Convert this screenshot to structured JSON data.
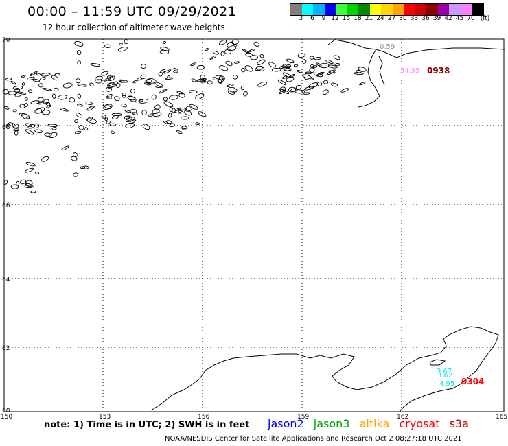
{
  "header": {
    "title": "00:00 – 11:59 UTC 09/29/2021",
    "subtitle": "12 hour collection of altimeter wave heights"
  },
  "legend": {
    "unit": "(ft)",
    "colors": [
      "#7f7f7f",
      "#00ffff",
      "#00b4ff",
      "#0000ff",
      "#40ff40",
      "#00d400",
      "#008800",
      "#ffff00",
      "#ffd700",
      "#ffa500",
      "#ff0000",
      "#cc0000",
      "#8b0000",
      "#9900aa",
      "#cc99ff",
      "#ff80ff",
      "#000000"
    ],
    "ticks": [
      "3",
      "6",
      "9",
      "12",
      "15",
      "18",
      "21",
      "24",
      "27",
      "30",
      "33",
      "36",
      "39",
      "42",
      "45",
      "70"
    ]
  },
  "map": {
    "lon_ticks": [
      "150",
      "153",
      "156",
      "159",
      "162",
      "165"
    ],
    "lat_ticks": [
      "70",
      "68",
      "66",
      "64",
      "62",
      "60"
    ],
    "annotations": [
      {
        "text": "0.59",
        "color": "#909090"
      },
      {
        "text": "54.95",
        "color": "#ff88ff"
      },
      {
        "text": "0938",
        "color": "#8b0000"
      },
      {
        "text": "3.67",
        "color": "#00e5e5"
      },
      {
        "text": "3.62",
        "color": "#00e5e5"
      },
      {
        "text": "4.95",
        "color": "#00e5e5"
      },
      {
        "text": "0304",
        "color": "#ff0000"
      }
    ]
  },
  "footer": {
    "note": "note:  1) Time is in UTC;  2) SWH is in feet",
    "satellites": [
      {
        "name": "jason2",
        "color": "#0000ff"
      },
      {
        "name": "jason3",
        "color": "#00a000"
      },
      {
        "name": "altika",
        "color": "#ffa500"
      },
      {
        "name": "cryosat",
        "color": "#ff0000"
      },
      {
        "name": "s3a",
        "color": "#cc0000"
      }
    ],
    "credit": "NOAA/NESDIS Center for Satellite Applications and Research    Oct  2 08:27:18 UTC 2021"
  }
}
